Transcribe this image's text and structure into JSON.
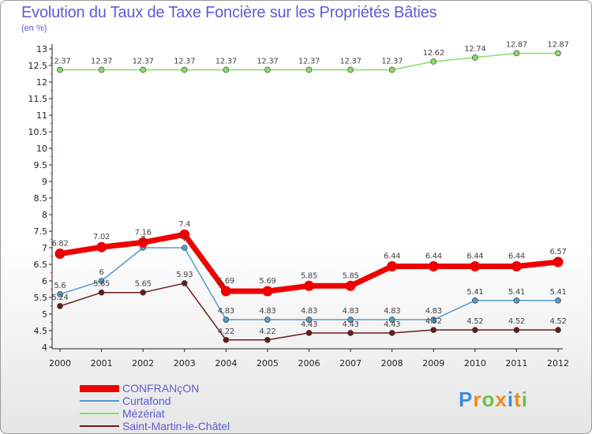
{
  "header": {
    "title": "Evolution du Taux de Taxe Foncière sur les Propriétés Bâties",
    "unit": "(en %)"
  },
  "chart_data": {
    "type": "line",
    "title": "Evolution du Taux de Taxe Foncière sur les Propriétés Bâties",
    "ylabel": "(en %)",
    "xlabel": "",
    "ylim": [
      4,
      13
    ],
    "y_ticks": [
      "4",
      "4.5",
      "5",
      "5.5",
      "6",
      "6.5",
      "7",
      "7.5",
      "8",
      "8.5",
      "9",
      "9.5",
      "10",
      "10.5",
      "11",
      "11.5",
      "12",
      "12.5",
      "13"
    ],
    "x": [
      "2000",
      "2001",
      "2002",
      "2003",
      "2004",
      "2005",
      "2006",
      "2007",
      "2008",
      "2009",
      "2010",
      "2011",
      "2012"
    ],
    "grid": false,
    "legend_position": "bottom-left",
    "series": [
      {
        "name": "CONFRANçON",
        "color": "#ee0000",
        "values": [
          6.82,
          7.02,
          7.16,
          7.4,
          5.69,
          5.69,
          5.85,
          5.85,
          6.44,
          6.44,
          6.44,
          6.44,
          6.57
        ],
        "labels": [
          "6.82",
          "7.02",
          "7.16",
          "7.4",
          "5.69",
          "5.69",
          "5.85",
          "5.85",
          "6.44",
          "6.44",
          "6.44",
          "6.44",
          "6.57"
        ]
      },
      {
        "name": "Curtafond",
        "color": "#5599cc",
        "values": [
          5.6,
          6,
          7,
          7,
          4.83,
          4.83,
          4.83,
          4.83,
          4.83,
          4.83,
          5.41,
          5.41,
          5.41
        ],
        "labels": [
          "5.6",
          "6",
          "7",
          "7",
          "4.83",
          "4.83",
          "4.83",
          "4.83",
          "4.83",
          "4.83",
          "5.41",
          "5.41",
          "5.41"
        ]
      },
      {
        "name": "Mézériat",
        "color": "#88dd66",
        "values": [
          12.37,
          12.37,
          12.37,
          12.37,
          12.37,
          12.37,
          12.37,
          12.37,
          12.37,
          12.62,
          12.74,
          12.87,
          12.87
        ],
        "labels": [
          "12.37",
          "12.37",
          "12.37",
          "12.37",
          "12.37",
          "12.37",
          "12.37",
          "12.37",
          "12.37",
          "12.62",
          "12.74",
          "12.87",
          "12.87"
        ]
      },
      {
        "name": "Saint-Martin-le-Châtel",
        "color": "#6b1a1a",
        "values": [
          5.24,
          5.65,
          5.65,
          5.93,
          4.22,
          4.22,
          4.43,
          4.43,
          4.43,
          4.52,
          4.52,
          4.52,
          4.52
        ],
        "labels": [
          "5.24",
          "5.65",
          "5.65",
          "5.93",
          "4.22",
          "4.22",
          "4.43",
          "4.43",
          "4.43",
          "4.52",
          "4.52",
          "4.52",
          "4.52"
        ]
      }
    ]
  },
  "logo": {
    "letters": [
      "P",
      "r",
      "o",
      "x",
      "i",
      "t",
      "i"
    ],
    "colors": [
      "#3a8fd8",
      "#f08a1c",
      "#6cc04a",
      "#f08a1c",
      "#3a8fd8",
      "#f08a1c",
      "#6cc04a"
    ]
  }
}
